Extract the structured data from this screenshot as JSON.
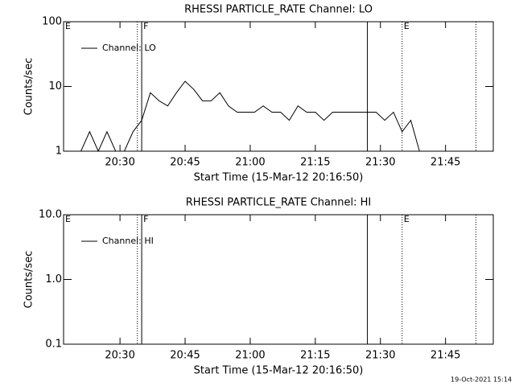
{
  "chart_data": [
    {
      "type": "line",
      "title": "RHESSI PARTICLE_RATE Channel: LO",
      "ylabel": "Counts/sec",
      "xlabel": "Start Time (15-Mar-12 20:16:50)",
      "log_y": true,
      "legend": "upper left",
      "xlim": [
        "20:17",
        "21:56"
      ],
      "xticks": [
        "20:30",
        "20:45",
        "21:00",
        "21:15",
        "21:30",
        "21:45"
      ],
      "ylim": [
        1,
        100
      ],
      "yticks": [
        1,
        10,
        100
      ],
      "lines": [
        {
          "x": "20:34",
          "style": "dotted"
        },
        {
          "x": "20:35",
          "style": "solid"
        },
        {
          "x": "21:27",
          "style": "solid"
        },
        {
          "x": "21:35",
          "style": "dotted"
        },
        {
          "x": "21:52",
          "style": "dotted"
        }
      ],
      "flags": [
        {
          "x": "20:17",
          "text": "E"
        },
        {
          "x": "20:35",
          "text": "F"
        },
        {
          "x": "21:35",
          "text": "E"
        }
      ],
      "series": [
        {
          "name": "Channel: LO",
          "color": "#000000",
          "x": [
            "20:17",
            "20:19",
            "20:21",
            "20:23",
            "20:25",
            "20:27",
            "20:29",
            "20:31",
            "20:33",
            "20:35",
            "20:37",
            "20:39",
            "20:41",
            "20:43",
            "20:45",
            "20:47",
            "20:49",
            "20:51",
            "20:53",
            "20:55",
            "20:57",
            "20:59",
            "21:01",
            "21:03",
            "21:05",
            "21:07",
            "21:09",
            "21:11",
            "21:13",
            "21:15",
            "21:17",
            "21:19",
            "21:21",
            "21:23",
            "21:25",
            "21:27",
            "21:29",
            "21:31",
            "21:33",
            "21:35",
            "21:37",
            "21:39",
            "21:41",
            "21:43",
            "21:45",
            "21:47",
            "21:49",
            "21:51",
            "21:53",
            "21:55"
          ],
          "values": [
            1,
            1,
            1,
            2,
            1,
            2,
            1,
            1,
            2,
            3,
            8,
            6,
            5,
            8,
            12,
            9,
            6,
            6,
            8,
            5,
            4,
            4,
            4,
            5,
            4,
            4,
            3,
            5,
            4,
            4,
            3,
            4,
            4,
            4,
            4,
            4,
            4,
            3,
            4,
            2,
            3,
            1,
            1,
            1,
            1,
            1,
            1,
            1,
            1,
            1
          ]
        }
      ]
    },
    {
      "type": "line",
      "title": "RHESSI PARTICLE_RATE Channel: HI",
      "ylabel": "Counts/sec",
      "xlabel": "Start Time (15-Mar-12 20:16:50)",
      "log_y": true,
      "legend": "upper left",
      "xlim": [
        "20:17",
        "21:56"
      ],
      "xticks": [
        "20:30",
        "20:45",
        "21:00",
        "21:15",
        "21:30",
        "21:45"
      ],
      "ylim": [
        0.1,
        10
      ],
      "yticks": [
        0.1,
        {
          "value": 1,
          "label": "1.0"
        },
        {
          "value": 10,
          "label": "10.0"
        }
      ],
      "lines": [
        {
          "x": "20:34",
          "style": "dotted"
        },
        {
          "x": "20:35",
          "style": "solid"
        },
        {
          "x": "21:27",
          "style": "solid"
        },
        {
          "x": "21:35",
          "style": "dotted"
        },
        {
          "x": "21:52",
          "style": "dotted"
        }
      ],
      "flags": [
        {
          "x": "20:17",
          "text": "E"
        },
        {
          "x": "20:35",
          "text": "F"
        },
        {
          "x": "21:35",
          "text": "E"
        }
      ],
      "series": [
        {
          "name": "Channel: HI",
          "color": "#000000",
          "x": [],
          "values": []
        }
      ]
    }
  ],
  "footer": "19-Oct-2021 15:14"
}
